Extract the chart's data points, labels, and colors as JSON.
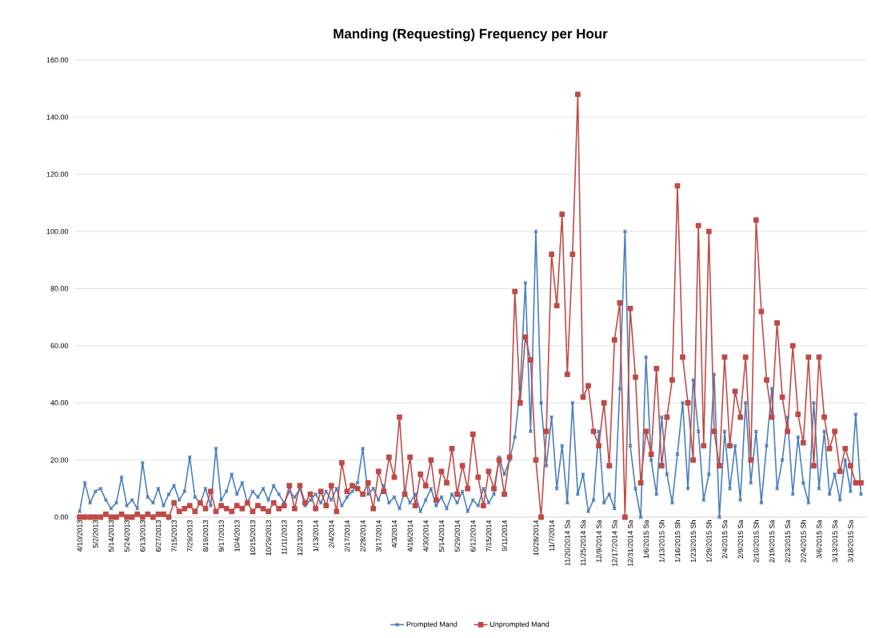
{
  "chart_data": {
    "type": "line",
    "title": "Manding (Requesting) Frequency per Hour",
    "categories": [
      "4/10/2013",
      null,
      null,
      "5/2/2013",
      null,
      null,
      "5/14/2013",
      null,
      null,
      "5/24/2013",
      null,
      null,
      "6/13/2013",
      null,
      null,
      "6/27/2013",
      null,
      null,
      "7/15/2013",
      null,
      null,
      "7/29/2013",
      null,
      null,
      "8/19/2013",
      null,
      null,
      "9/17/2013",
      null,
      null,
      "10/4/2013",
      null,
      null,
      "10/15/2013",
      null,
      null,
      "10/29/2013",
      null,
      null,
      "11/11/2013",
      null,
      null,
      "12/13/2013",
      null,
      null,
      "1/13/2014",
      null,
      null,
      "2/4/2014",
      null,
      null,
      "2/17/2014",
      null,
      null,
      "2/28/2014",
      null,
      null,
      "3/17/2014",
      null,
      null,
      "4/3/2014",
      null,
      null,
      "4/16/2014",
      null,
      null,
      "4/30/2014",
      null,
      null,
      "5/14/2014",
      null,
      null,
      "5/29/2014",
      null,
      null,
      "6/12/2014",
      null,
      null,
      "7/15/2014",
      null,
      null,
      "9/11/2014",
      null,
      null,
      null,
      null,
      null,
      "10/28/2014",
      null,
      null,
      "11/7/2014",
      null,
      null,
      "11/20/2014 Sa",
      null,
      null,
      "11/25/2014 Sa",
      null,
      null,
      "12/9/2014 Sa",
      null,
      null,
      "12/17/2014 Sa",
      null,
      null,
      "12/31/2014 Sa",
      null,
      null,
      "1/6/2015 Sa",
      null,
      null,
      "1/13/2015 Sh",
      null,
      null,
      "1/16/2015 Sh",
      null,
      null,
      "1/23/2015 Sh",
      null,
      null,
      "1/29/2015 Sh",
      null,
      null,
      "2/4/2015 Sa",
      null,
      null,
      "2/9/2015 Sa",
      null,
      null,
      "2/10/2015 Sh",
      null,
      null,
      "2/19/2015 Sa",
      null,
      null,
      "2/23/2015 Sa",
      null,
      null,
      "2/24/2015 Sh",
      null,
      null,
      "3/6/2015 Sa",
      null,
      null,
      "3/13/2015 Sa",
      null,
      null,
      "3/18/2015 Sa",
      null,
      null
    ],
    "series": [
      {
        "name": "Prompted Mand",
        "color": "#4a7ebb",
        "marker": "cross",
        "values": [
          2,
          12,
          5,
          9,
          10,
          6,
          3,
          5,
          14,
          4,
          6,
          3,
          19,
          7,
          5,
          10,
          4,
          8,
          11,
          6,
          9,
          21,
          7,
          5,
          10,
          4,
          24,
          6,
          9,
          15,
          8,
          12,
          5,
          9,
          7,
          10,
          6,
          11,
          8,
          5,
          9,
          7,
          10,
          4,
          6,
          8,
          5,
          9,
          6,
          10,
          4,
          7,
          9,
          12,
          24,
          8,
          10,
          6,
          11,
          5,
          7,
          3,
          9,
          5,
          8,
          2,
          6,
          10,
          4,
          7,
          3,
          8,
          5,
          9,
          2,
          6,
          4,
          10,
          5,
          8,
          21,
          15,
          20,
          28,
          45,
          82,
          30,
          100,
          40,
          18,
          35,
          10,
          25,
          5,
          40,
          8,
          15,
          2,
          6,
          30,
          5,
          8,
          3,
          45,
          100,
          25,
          10,
          0,
          56,
          20,
          8,
          35,
          15,
          5,
          22,
          40,
          10,
          48,
          30,
          6,
          15,
          50,
          0,
          30,
          10,
          25,
          6,
          40,
          12,
          30,
          5,
          25,
          45,
          10,
          20,
          35,
          8,
          28,
          12,
          5,
          40,
          10,
          30,
          8,
          15,
          6,
          20,
          9,
          36,
          8
        ]
      },
      {
        "name": "Unprompted Mand",
        "color": "#be4b48",
        "marker": "square",
        "values": [
          0,
          0,
          0,
          0,
          0,
          1,
          0,
          0,
          1,
          0,
          0,
          1,
          0,
          1,
          0,
          1,
          1,
          0,
          5,
          2,
          3,
          4,
          2,
          5,
          3,
          9,
          2,
          4,
          3,
          2,
          4,
          3,
          5,
          2,
          4,
          3,
          2,
          5,
          3,
          4,
          11,
          3,
          11,
          5,
          8,
          3,
          9,
          4,
          11,
          2,
          19,
          9,
          11,
          10,
          8,
          12,
          3,
          16,
          9,
          21,
          14,
          35,
          8,
          21,
          4,
          15,
          11,
          20,
          6,
          16,
          12,
          24,
          8,
          18,
          10,
          29,
          14,
          4,
          16,
          10,
          20,
          8,
          21,
          79,
          40,
          63,
          55,
          20,
          0,
          30,
          92,
          74,
          106,
          50,
          92,
          148,
          42,
          46,
          30,
          25,
          40,
          18,
          62,
          75,
          0,
          73,
          49,
          12,
          30,
          22,
          52,
          18,
          35,
          48,
          116,
          56,
          40,
          20,
          102,
          25,
          100,
          30,
          18,
          56,
          25,
          44,
          35,
          56,
          20,
          104,
          72,
          48,
          35,
          68,
          42,
          30,
          60,
          36,
          26,
          56,
          18,
          56,
          35,
          24,
          30,
          16,
          24,
          18,
          12,
          12
        ]
      }
    ],
    "ylim": [
      0,
      160
    ],
    "yticks": [
      {
        "value": 0,
        "label": "0.00"
      },
      {
        "value": 20,
        "label": "20.00"
      },
      {
        "value": 40,
        "label": "40.00"
      },
      {
        "value": 60,
        "label": "60.00"
      },
      {
        "value": 80,
        "label": "80.00"
      },
      {
        "value": 100,
        "label": "100.00"
      },
      {
        "value": 120,
        "label": "120.00"
      },
      {
        "value": 140,
        "label": "140.00"
      },
      {
        "value": 160,
        "label": "160.00"
      }
    ],
    "grid": "y",
    "legend": "bottom",
    "line_style": "solid"
  }
}
